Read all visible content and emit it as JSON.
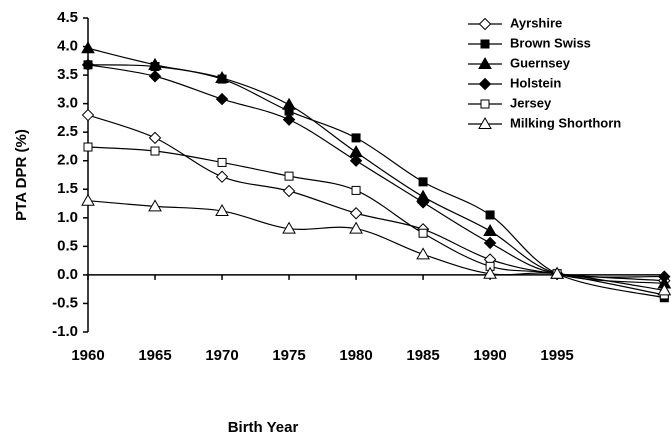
{
  "chart_data": {
    "type": "line",
    "x_label": "Birth Year",
    "y_label": "PTA DPR (%)",
    "x": [
      1960,
      1965,
      1970,
      1975,
      1980,
      1985,
      1990,
      1995,
      2003
    ],
    "xlim": [
      1960,
      2003.2
    ],
    "xticks": [
      1960,
      1965,
      1970,
      1975,
      1980,
      1985,
      1990,
      1995
    ],
    "ylim": [
      -1,
      4.5
    ],
    "yticks": [
      {
        "value": -1,
        "label": "-1.0"
      },
      -0.5,
      {
        "value": 0,
        "label": "0.0"
      },
      0.5,
      {
        "value": 1,
        "label": "1.0"
      },
      1.5,
      {
        "value": 2,
        "label": "2.0"
      },
      2.5,
      {
        "value": 3,
        "label": "3.0"
      },
      3.5,
      {
        "value": 4,
        "label": "4.0"
      },
      4.5
    ],
    "legend": "top-right",
    "series": [
      {
        "name": "Ayrshire",
        "color": "#000000",
        "marker": "diamond",
        "filled": false,
        "values": [
          2.8,
          2.4,
          1.72,
          1.47,
          1.08,
          0.8,
          0.27,
          0.02,
          -0.1
        ]
      },
      {
        "name": "Brown Swiss",
        "color": "#000000",
        "marker": "square",
        "filled": true,
        "values": [
          3.68,
          3.65,
          3.43,
          2.87,
          2.4,
          1.63,
          1.05,
          0.02,
          -0.4
        ]
      },
      {
        "name": "Guernsey",
        "color": "#000000",
        "marker": "triangle",
        "filled": true,
        "values": [
          3.97,
          3.68,
          3.45,
          2.98,
          2.15,
          1.37,
          0.77,
          0.02,
          -0.15
        ]
      },
      {
        "name": "Holstein",
        "color": "#000000",
        "marker": "diamond",
        "filled": true,
        "values": [
          3.68,
          3.48,
          3.08,
          2.72,
          2.0,
          1.27,
          0.56,
          0.02,
          -0.03
        ]
      },
      {
        "name": "Jersey",
        "color": "#000000",
        "marker": "square",
        "filled": false,
        "values": [
          2.24,
          2.17,
          1.97,
          1.73,
          1.48,
          0.73,
          0.15,
          0.02,
          -0.35
        ]
      },
      {
        "name": "Milking Shorthorn",
        "color": "#000000",
        "marker": "triangle",
        "filled": false,
        "values": [
          1.3,
          1.2,
          1.12,
          0.81,
          0.81,
          0.36,
          0.02,
          0.02,
          -0.27
        ]
      }
    ]
  }
}
